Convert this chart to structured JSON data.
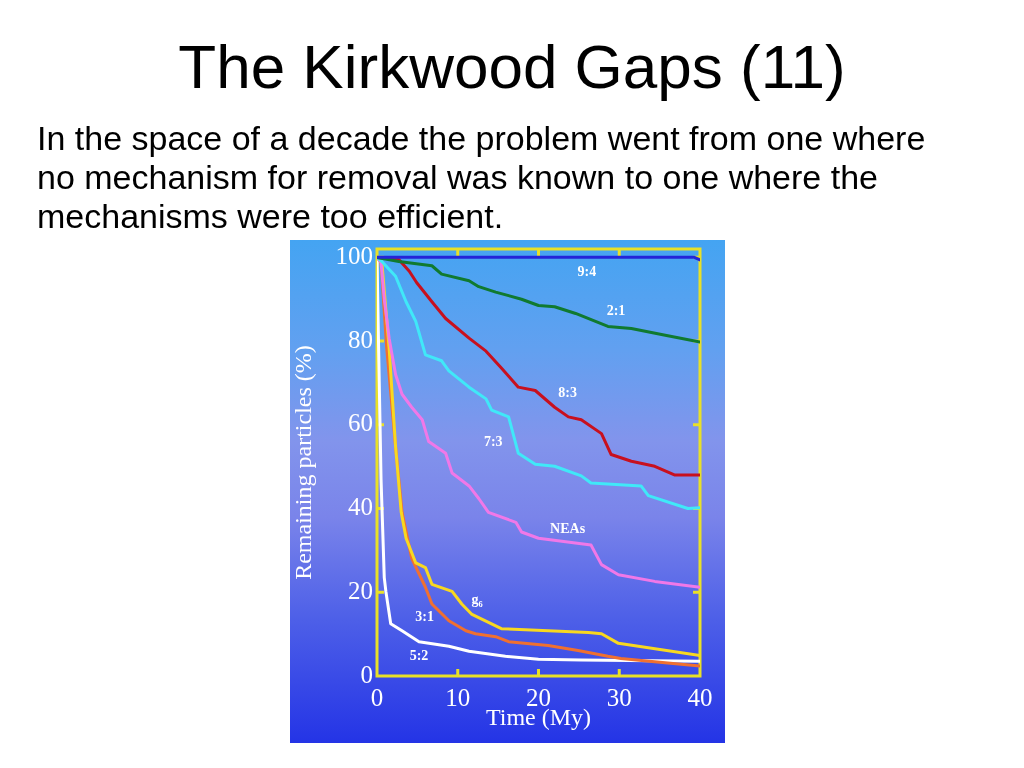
{
  "chart_data": {
    "type": "line",
    "title": "The Kirkwood Gaps (11)",
    "subtitle": "In the space of a decade the problem went from one where no mechanism for removal was known to one where the mechanisms were too efficient.",
    "xlabel": "Time (My)",
    "ylabel": "Remaining particles (%)",
    "xlim": [
      0,
      40
    ],
    "ylim": [
      0,
      102
    ],
    "xticks": [
      0,
      10,
      20,
      30,
      40
    ],
    "yticks": [
      0,
      20,
      40,
      60,
      80,
      100
    ],
    "marker": "none",
    "series": [
      {
        "name": "9:4",
        "color": "#2424d8",
        "x": [
          0,
          39.3,
          40
        ],
        "values": [
          100,
          100,
          99.4
        ]
      },
      {
        "name": "2:1",
        "color": "#107a30",
        "x": [
          0,
          2.7,
          6.8,
          8,
          11.4,
          12.6,
          14.7,
          17.9,
          20,
          22,
          24.6,
          28.6,
          31.5,
          35.7,
          40
        ],
        "values": [
          100,
          99,
          98,
          96,
          94.4,
          93,
          91.7,
          90,
          88.5,
          88.2,
          86.6,
          83.5,
          83,
          81.4,
          79.8
        ]
      },
      {
        "name": "8:3",
        "color": "#c8101e",
        "x": [
          0,
          2.7,
          4,
          4.9,
          6.8,
          8.5,
          11.4,
          13.5,
          15.4,
          17.5,
          19.6,
          22,
          23.7,
          25.3,
          27.8,
          29,
          31.5,
          34.4,
          36.9,
          40
        ],
        "values": [
          100,
          99.5,
          96.7,
          94,
          89.4,
          85.4,
          80.7,
          77.6,
          73.6,
          69,
          68.2,
          64.2,
          61.9,
          61.2,
          57.9,
          52.9,
          51.3,
          50.1,
          48,
          48
        ]
      },
      {
        "name": "7:3",
        "color": "#40e8f8",
        "x": [
          0,
          0.6,
          2.3,
          3.6,
          4.8,
          6,
          8,
          8.9,
          11.4,
          13.5,
          14.2,
          16.3,
          17.5,
          19.6,
          22,
          25.3,
          26.5,
          32.7,
          33.6,
          38.5,
          40
        ],
        "values": [
          100,
          99,
          95.5,
          89.4,
          84.7,
          76.7,
          75.3,
          72.9,
          69,
          66.2,
          63.5,
          61.9,
          53.2,
          50.6,
          50.1,
          47.8,
          46.1,
          45.4,
          43.1,
          40,
          40.2
        ]
      },
      {
        "name": "NEAs",
        "color": "#f078e8",
        "x": [
          0,
          0.5,
          0.9,
          1.5,
          2.3,
          3.1,
          4.3,
          5.6,
          6.4,
          8.5,
          9.3,
          11.4,
          12.6,
          13.8,
          17.2,
          17.9,
          20,
          26.5,
          27.8,
          29.9,
          34.4,
          40
        ],
        "values": [
          100,
          98.8,
          90,
          80.7,
          72,
          67.3,
          64.2,
          61.2,
          56,
          53.2,
          48.5,
          45.4,
          42.4,
          39.1,
          36.7,
          34.4,
          32.9,
          31.3,
          26.6,
          24.2,
          22.6,
          21.2
        ]
      },
      {
        "name": "g₆",
        "color": "#f8d820",
        "x": [
          0,
          0.6,
          1.5,
          2.3,
          3,
          3.6,
          4.8,
          6,
          6.8,
          9.3,
          10.5,
          11.7,
          15.4,
          26.2,
          27.8,
          29.9,
          40
        ],
        "values": [
          100,
          98.8,
          78.4,
          54.8,
          39.1,
          32.9,
          27,
          25.9,
          21.9,
          20.2,
          17.2,
          14.8,
          11.3,
          10.4,
          10.1,
          7.8,
          4.9
        ]
      },
      {
        "name": "3:1",
        "color": "#f07030",
        "x": [
          0,
          0.5,
          1.2,
          2.3,
          3.1,
          4.3,
          6,
          6.8,
          8.9,
          11,
          12.2,
          14.7,
          16.3,
          21.2,
          24.9,
          28.6,
          30.2,
          36,
          40
        ],
        "values": [
          100,
          98.8,
          78.4,
          54.8,
          39.1,
          28.1,
          21.2,
          17.2,
          13.2,
          10.8,
          10.1,
          9.4,
          8.2,
          7.3,
          6.1,
          4.7,
          4.2,
          3.1,
          2.4
        ]
      },
      {
        "name": "5:2",
        "color": "#ffffff",
        "x": [
          0,
          0.2,
          0.5,
          0.9,
          1.1,
          1.7,
          3.1,
          5.2,
          8.9,
          11.4,
          15.9,
          20,
          25.3,
          40
        ],
        "values": [
          100,
          78.4,
          47,
          23.5,
          20.2,
          12.5,
          10.8,
          8.2,
          7.1,
          5.9,
          4.7,
          4,
          3.8,
          3.5
        ]
      }
    ]
  }
}
